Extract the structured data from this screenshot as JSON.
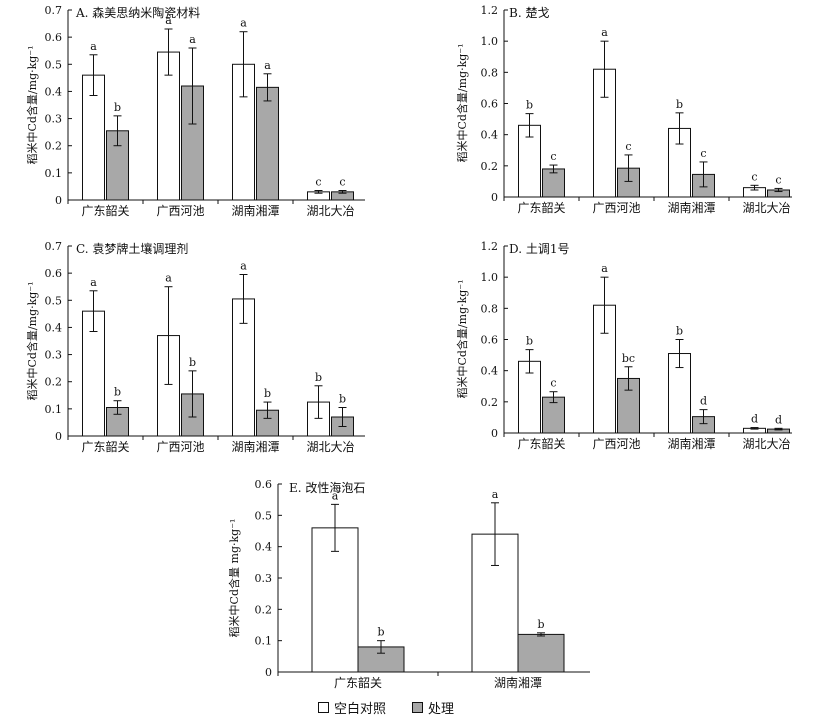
{
  "chart_data": [
    {
      "panel": "A",
      "type": "bar",
      "title": "A. 森美思纳米陶瓷材料",
      "ylabel": "稻米中Cd含量/mg·kg⁻¹",
      "ylim": [
        0,
        0.7
      ],
      "yticks": [
        "0",
        "0.1",
        "0.2",
        "0.3",
        "0.4",
        "0.5",
        "0.6",
        "0.7"
      ],
      "categories": [
        "广东韶关",
        "广西河池",
        "湖南湘潭",
        "湖北大冶"
      ],
      "series": [
        {
          "name": "空白对照",
          "values": [
            0.46,
            0.545,
            0.5,
            0.03
          ],
          "errors": [
            0.075,
            0.085,
            0.12,
            0.005
          ],
          "letters": [
            "a",
            "a",
            "a",
            "c"
          ]
        },
        {
          "name": "处理",
          "values": [
            0.255,
            0.42,
            0.415,
            0.03
          ],
          "errors": [
            0.055,
            0.14,
            0.05,
            0.005
          ],
          "letters": [
            "b",
            "a",
            "a",
            "c"
          ]
        }
      ]
    },
    {
      "panel": "B",
      "type": "bar",
      "title": "B. 楚戈",
      "ylabel": "稻米中Cd含量/mg·kg⁻¹",
      "ylim": [
        0,
        1.2
      ],
      "yticks": [
        "0",
        "0.2",
        "0.4",
        "0.6",
        "0.8",
        "1.0",
        "1.2"
      ],
      "categories": [
        "广东韶关",
        "广西河池",
        "湖南湘潭",
        "湖北大冶"
      ],
      "series": [
        {
          "name": "空白对照",
          "values": [
            0.46,
            0.82,
            0.44,
            0.06
          ],
          "errors": [
            0.075,
            0.18,
            0.1,
            0.015
          ],
          "letters": [
            "b",
            "a",
            "b",
            "c"
          ]
        },
        {
          "name": "处理",
          "values": [
            0.18,
            0.185,
            0.145,
            0.045
          ],
          "errors": [
            0.025,
            0.085,
            0.08,
            0.01
          ],
          "letters": [
            "c",
            "c",
            "c",
            "c"
          ]
        }
      ]
    },
    {
      "panel": "C",
      "type": "bar",
      "title": "C. 袁梦牌土壤调理剂",
      "ylabel": "稻米中Cd含量/mg·kg⁻¹",
      "ylim": [
        0,
        0.7
      ],
      "yticks": [
        "0",
        "0.1",
        "0.2",
        "0.3",
        "0.4",
        "0.5",
        "0.6",
        "0.7"
      ],
      "categories": [
        "广东韶关",
        "广西河池",
        "湖南湘潭",
        "湖北大冶"
      ],
      "series": [
        {
          "name": "空白对照",
          "values": [
            0.46,
            0.37,
            0.505,
            0.125
          ],
          "errors": [
            0.075,
            0.18,
            0.09,
            0.06
          ],
          "letters": [
            "a",
            "a",
            "a",
            "b"
          ]
        },
        {
          "name": "处理",
          "values": [
            0.105,
            0.155,
            0.095,
            0.07
          ],
          "errors": [
            0.025,
            0.085,
            0.03,
            0.035
          ],
          "letters": [
            "b",
            "b",
            "b",
            "b"
          ]
        }
      ]
    },
    {
      "panel": "D",
      "type": "bar",
      "title": "D. 土调1号",
      "ylabel": "稻米中Cd含量/mg·kg⁻¹",
      "ylim": [
        0,
        1.2
      ],
      "yticks": [
        "0",
        "0.2",
        "0.4",
        "0.6",
        "0.8",
        "1.0",
        "1.2"
      ],
      "categories": [
        "广东韶关",
        "广西河池",
        "湖南湘潭",
        "湖北大冶"
      ],
      "series": [
        {
          "name": "空白对照",
          "values": [
            0.46,
            0.82,
            0.51,
            0.03
          ],
          "errors": [
            0.075,
            0.18,
            0.09,
            0.005
          ],
          "letters": [
            "b",
            "a",
            "b",
            "d"
          ]
        },
        {
          "name": "处理",
          "values": [
            0.23,
            0.35,
            0.105,
            0.025
          ],
          "errors": [
            0.035,
            0.075,
            0.045,
            0.005
          ],
          "letters": [
            "c",
            "bc",
            "d",
            "d"
          ]
        }
      ]
    },
    {
      "panel": "E",
      "type": "bar",
      "title": "E. 改性海泡石",
      "ylabel": "稻米中Cd含量 mg·kg⁻¹",
      "ylim": [
        0,
        0.6
      ],
      "yticks": [
        "0",
        "0.1",
        "0.2",
        "0.3",
        "0.4",
        "0.5",
        "0.6"
      ],
      "categories": [
        "广东韶关",
        "湖南湘潭"
      ],
      "series": [
        {
          "name": "空白对照",
          "values": [
            0.46,
            0.44
          ],
          "errors": [
            0.075,
            0.1
          ],
          "letters": [
            "a",
            "a"
          ]
        },
        {
          "name": "处理",
          "values": [
            0.08,
            0.12
          ],
          "errors": [
            0.02,
            0.005
          ],
          "letters": [
            "b",
            "b"
          ]
        }
      ]
    }
  ],
  "legend": {
    "items": [
      {
        "label": "空白对照",
        "color": "#ffffff"
      },
      {
        "label": "处理",
        "color": "#a8a8a8"
      }
    ]
  },
  "colors": {
    "control": "#ffffff",
    "treatment": "#a8a8a8",
    "ink": "#111111"
  }
}
